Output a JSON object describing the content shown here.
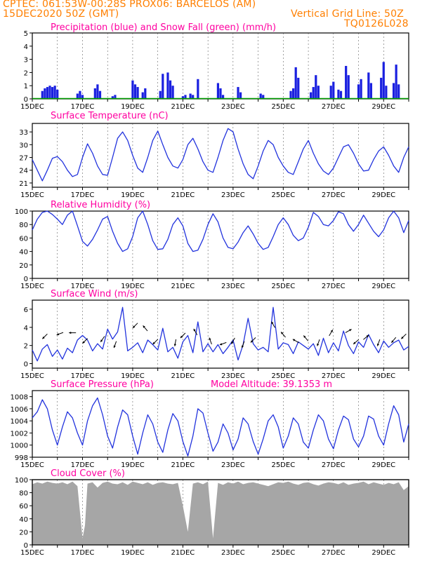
{
  "header": {
    "line1_left": "CPTEC:   061:53W-00:28S   PROX06: BARCELOS (AM)",
    "line2_left": "15DEC2020 50Z (GMT)",
    "line2_right": "Vertical Grid Line: 50Z",
    "line3_right": "TQ0126L028"
  },
  "colors": {
    "header": "#ff7f00",
    "title": "#ff00a0",
    "line": "#2233dd",
    "bar": "#1a20e0",
    "snow": "#00a000",
    "cloud": "#a6a6a6"
  },
  "x_axis_labels": [
    "15DEC",
    "17DEC",
    "19DEC",
    "21DEC",
    "23DEC",
    "25DEC",
    "27DEC",
    "29DEC"
  ],
  "x_axis_start_day": 15,
  "x_axis_end_day": 30,
  "chart_data": [
    {
      "id": "precip",
      "type": "bar",
      "title": "Precipitation (blue) and Snow Fall (green) (mm/h)",
      "ylim": [
        0,
        5
      ],
      "yticks": [
        "0",
        "1",
        "2",
        "3",
        "4",
        "5"
      ],
      "series": [
        {
          "name": "Precipitation",
          "x": [
            15.4,
            15.5,
            15.6,
            15.7,
            15.8,
            15.9,
            16.0,
            16.8,
            16.9,
            17.0,
            17.5,
            17.6,
            17.7,
            18.2,
            18.3,
            19.0,
            19.1,
            19.2,
            19.4,
            19.5,
            20.1,
            20.2,
            20.4,
            20.5,
            20.6,
            21.0,
            21.1,
            21.3,
            21.4,
            21.6,
            22.4,
            22.5,
            22.6,
            23.2,
            23.3,
            24.1,
            24.2,
            25.3,
            25.4,
            25.5,
            25.6,
            26.1,
            26.2,
            26.3,
            26.4,
            26.9,
            27.0,
            27.2,
            27.3,
            27.5,
            27.6,
            28.0,
            28.1,
            28.4,
            28.5,
            28.9,
            29.0,
            29.1,
            29.4,
            29.5,
            29.6
          ],
          "y": [
            0.6,
            0.8,
            0.9,
            1.0,
            0.9,
            1.0,
            0.7,
            0.4,
            0.6,
            0.3,
            0.8,
            1.1,
            0.6,
            0.2,
            0.3,
            1.4,
            1.1,
            0.9,
            0.5,
            0.8,
            0.6,
            1.9,
            2.0,
            1.4,
            1.0,
            0.2,
            0.3,
            0.4,
            0.3,
            1.5,
            1.2,
            0.8,
            0.3,
            0.9,
            0.5,
            0.4,
            0.3,
            0.6,
            0.8,
            2.4,
            1.6,
            0.5,
            0.9,
            1.8,
            1.0,
            1.0,
            1.3,
            0.7,
            0.6,
            2.5,
            1.8,
            1.1,
            1.5,
            2.0,
            1.2,
            1.6,
            2.8,
            1.0,
            1.2,
            2.6,
            1.1
          ]
        },
        {
          "name": "Snow Fall",
          "x": [
            15.0,
            30.0
          ],
          "y": [
            0,
            0
          ]
        }
      ]
    },
    {
      "id": "temp",
      "type": "line",
      "title": "Surface Temperature (nC)",
      "ylim": [
        20,
        35
      ],
      "yticks": [
        "21",
        "24",
        "27",
        "30",
        "33"
      ],
      "ytick_values": [
        21,
        24,
        27,
        30,
        33
      ],
      "x": [
        15.0,
        15.2,
        15.4,
        15.6,
        15.8,
        16.0,
        16.2,
        16.4,
        16.6,
        16.8,
        17.0,
        17.2,
        17.4,
        17.6,
        17.8,
        18.0,
        18.2,
        18.4,
        18.6,
        18.8,
        19.0,
        19.2,
        19.4,
        19.6,
        19.8,
        20.0,
        20.2,
        20.4,
        20.6,
        20.8,
        21.0,
        21.2,
        21.4,
        21.6,
        21.8,
        22.0,
        22.2,
        22.4,
        22.6,
        22.8,
        23.0,
        23.2,
        23.4,
        23.6,
        23.8,
        24.0,
        24.2,
        24.4,
        24.6,
        24.8,
        25.0,
        25.2,
        25.4,
        25.6,
        25.8,
        26.0,
        26.2,
        26.4,
        26.6,
        26.8,
        27.0,
        27.2,
        27.4,
        27.6,
        27.8,
        28.0,
        28.2,
        28.4,
        28.6,
        28.8,
        29.0,
        29.2,
        29.4,
        29.6,
        29.8,
        30.0
      ],
      "y": [
        26.5,
        24,
        21.5,
        24,
        26.8,
        27.2,
        26,
        24,
        22.5,
        23,
        27,
        30.2,
        28,
        25,
        23,
        22.8,
        27,
        31.5,
        33,
        31,
        27.5,
        24.5,
        23.5,
        27,
        31,
        33.2,
        30,
        27,
        25,
        24.5,
        26.5,
        30,
        31.5,
        29,
        26,
        24,
        23.5,
        27,
        31,
        33.8,
        33,
        29,
        25.5,
        23,
        22,
        25,
        28.5,
        31,
        30,
        27,
        25,
        23.5,
        23,
        26,
        29,
        31,
        28,
        25.5,
        23.8,
        23,
        24.5,
        27,
        29.5,
        30,
        28,
        25.5,
        23.8,
        24,
        26.5,
        28.5,
        29.5,
        27.5,
        25,
        23.5,
        27,
        29.5
      ]
    },
    {
      "id": "rh",
      "type": "line",
      "title": "Relative Humidity (%)",
      "ylim": [
        0,
        100
      ],
      "yticks": [
        "0",
        "20",
        "40",
        "60",
        "80",
        "100"
      ],
      "ytick_values": [
        0,
        20,
        40,
        60,
        80,
        100
      ],
      "x": [
        15.0,
        15.2,
        15.4,
        15.6,
        15.8,
        16.0,
        16.2,
        16.4,
        16.6,
        16.8,
        17.0,
        17.2,
        17.4,
        17.6,
        17.8,
        18.0,
        18.2,
        18.4,
        18.6,
        18.8,
        19.0,
        19.2,
        19.4,
        19.6,
        19.8,
        20.0,
        20.2,
        20.4,
        20.6,
        20.8,
        21.0,
        21.2,
        21.4,
        21.6,
        21.8,
        22.0,
        22.2,
        22.4,
        22.6,
        22.8,
        23.0,
        23.2,
        23.4,
        23.6,
        23.8,
        24.0,
        24.2,
        24.4,
        24.6,
        24.8,
        25.0,
        25.2,
        25.4,
        25.6,
        25.8,
        26.0,
        26.2,
        26.4,
        26.6,
        26.8,
        27.0,
        27.2,
        27.4,
        27.6,
        27.8,
        28.0,
        28.2,
        28.4,
        28.6,
        28.8,
        29.0,
        29.2,
        29.4,
        29.6,
        29.8,
        30.0
      ],
      "y": [
        72,
        88,
        98,
        100,
        95,
        88,
        80,
        94,
        100,
        78,
        55,
        48,
        58,
        72,
        88,
        92,
        70,
        52,
        40,
        44,
        62,
        90,
        100,
        80,
        56,
        43,
        44,
        58,
        80,
        90,
        78,
        52,
        40,
        42,
        58,
        80,
        96,
        84,
        60,
        46,
        44,
        54,
        68,
        78,
        66,
        52,
        43,
        46,
        62,
        80,
        90,
        80,
        64,
        56,
        60,
        76,
        98,
        92,
        80,
        78,
        86,
        99,
        96,
        80,
        70,
        80,
        94,
        82,
        70,
        62,
        72,
        90,
        100,
        90,
        68,
        86
      ]
    },
    {
      "id": "wind",
      "type": "line",
      "title": "Surface Wind (m/s)",
      "ylim": [
        -0.5,
        7
      ],
      "yticks": [
        "0",
        "2",
        "4",
        "6"
      ],
      "ytick_values": [
        0,
        2,
        4,
        6
      ],
      "x": [
        15.0,
        15.2,
        15.4,
        15.6,
        15.8,
        16.0,
        16.2,
        16.4,
        16.6,
        16.8,
        17.0,
        17.2,
        17.4,
        17.6,
        17.8,
        18.0,
        18.2,
        18.4,
        18.6,
        18.8,
        19.0,
        19.2,
        19.4,
        19.6,
        19.8,
        20.0,
        20.2,
        20.4,
        20.6,
        20.8,
        21.0,
        21.2,
        21.4,
        21.6,
        21.8,
        22.0,
        22.2,
        22.4,
        22.6,
        22.8,
        23.0,
        23.2,
        23.4,
        23.6,
        23.8,
        24.0,
        24.2,
        24.4,
        24.6,
        24.8,
        25.0,
        25.2,
        25.4,
        25.6,
        25.8,
        26.0,
        26.2,
        26.4,
        26.6,
        26.8,
        27.0,
        27.2,
        27.4,
        27.6,
        27.8,
        28.0,
        28.2,
        28.4,
        28.6,
        28.8,
        29.0,
        29.2,
        29.4,
        29.6,
        29.8,
        30.0
      ],
      "y": [
        1.5,
        0.3,
        1.6,
        2.1,
        0.8,
        1.5,
        0.5,
        1.7,
        1.2,
        2.6,
        3.1,
        2.6,
        1.4,
        2.2,
        1.6,
        3.8,
        2.7,
        3.5,
        6.2,
        1.4,
        1.8,
        2.3,
        1.2,
        2.6,
        2.1,
        1.5,
        3.9,
        1.3,
        1.8,
        0.6,
        2.4,
        3.1,
        1.2,
        4.6,
        1.3,
        2.2,
        1.3,
        2.1,
        1.1,
        1.8,
        2.6,
        0.4,
        2.1,
        5.0,
        2.2,
        1.5,
        1.8,
        1.3,
        6.2,
        1.6,
        2.3,
        2.1,
        1.1,
        2.4,
        2.0,
        1.6,
        2.2,
        0.9,
        2.8,
        1.2,
        2.3,
        1.4,
        3.6,
        2.0,
        1.1,
        2.4,
        1.8,
        3.2,
        2.1,
        1.2,
        2.5,
        1.8,
        2.3,
        2.6,
        1.5,
        1.9
      ],
      "wind_arrows": [
        {
          "x": 15.5,
          "y": 3.0,
          "angle": 225
        },
        {
          "x": 16.1,
          "y": 3.3,
          "angle": 200
        },
        {
          "x": 16.6,
          "y": 3.4,
          "angle": 180
        },
        {
          "x": 17.1,
          "y": 2.5,
          "angle": 225
        },
        {
          "x": 17.8,
          "y": 2.7,
          "angle": 235
        },
        {
          "x": 18.3,
          "y": 2.1,
          "angle": 250
        },
        {
          "x": 19.1,
          "y": 4.2,
          "angle": 225
        },
        {
          "x": 19.5,
          "y": 3.9,
          "angle": 130
        },
        {
          "x": 19.9,
          "y": 2.4,
          "angle": 225
        },
        {
          "x": 20.7,
          "y": 2.3,
          "angle": 260
        },
        {
          "x": 21.0,
          "y": 3.1,
          "angle": 225
        },
        {
          "x": 21.5,
          "y": 3.5,
          "angle": 120
        },
        {
          "x": 22.1,
          "y": 2.5,
          "angle": 110
        },
        {
          "x": 22.6,
          "y": 2.2,
          "angle": 200
        },
        {
          "x": 23.0,
          "y": 2.5,
          "angle": 240
        },
        {
          "x": 23.4,
          "y": 2.1,
          "angle": 250
        },
        {
          "x": 23.8,
          "y": 2.6,
          "angle": 225
        },
        {
          "x": 24.6,
          "y": 4.3,
          "angle": 120
        },
        {
          "x": 25.0,
          "y": 3.2,
          "angle": 130
        },
        {
          "x": 25.5,
          "y": 2.5,
          "angle": 150
        },
        {
          "x": 25.9,
          "y": 2.8,
          "angle": 130
        },
        {
          "x": 26.4,
          "y": 2.3,
          "angle": 250
        },
        {
          "x": 26.9,
          "y": 3.4,
          "angle": 60
        },
        {
          "x": 27.6,
          "y": 3.6,
          "angle": 30
        },
        {
          "x": 27.9,
          "y": 2.4,
          "angle": 220
        },
        {
          "x": 28.3,
          "y": 2.9,
          "angle": 40
        },
        {
          "x": 28.8,
          "y": 2.3,
          "angle": 250
        },
        {
          "x": 29.4,
          "y": 2.6,
          "angle": 230
        },
        {
          "x": 29.8,
          "y": 3.0,
          "angle": 225
        }
      ]
    },
    {
      "id": "pres",
      "type": "line",
      "title": "Surface Pressure (hPa)",
      "subtitle": "Model Altitude: 39.1353 m",
      "ylim": [
        998,
        1009
      ],
      "yticks": [
        "998",
        "1000",
        "1002",
        "1004",
        "1006",
        "1008"
      ],
      "ytick_values": [
        998,
        1000,
        1002,
        1004,
        1006,
        1008
      ],
      "x": [
        15.0,
        15.2,
        15.4,
        15.6,
        15.8,
        16.0,
        16.2,
        16.4,
        16.6,
        16.8,
        17.0,
        17.2,
        17.4,
        17.6,
        17.8,
        18.0,
        18.2,
        18.4,
        18.6,
        18.8,
        19.0,
        19.2,
        19.4,
        19.6,
        19.8,
        20.0,
        20.2,
        20.4,
        20.6,
        20.8,
        21.0,
        21.2,
        21.4,
        21.6,
        21.8,
        22.0,
        22.2,
        22.4,
        22.6,
        22.8,
        23.0,
        23.2,
        23.4,
        23.6,
        23.8,
        24.0,
        24.2,
        24.4,
        24.6,
        24.8,
        25.0,
        25.2,
        25.4,
        25.6,
        25.8,
        26.0,
        26.2,
        26.4,
        26.6,
        26.8,
        27.0,
        27.2,
        27.4,
        27.6,
        27.8,
        28.0,
        28.2,
        28.4,
        28.6,
        28.8,
        29.0,
        29.2,
        29.4,
        29.6,
        29.8,
        30.0
      ],
      "y": [
        1004.5,
        1005.5,
        1007.5,
        1006,
        1002.5,
        1000,
        1003,
        1005.5,
        1004.5,
        1002,
        1000,
        1004,
        1006.5,
        1007.8,
        1005,
        1001.5,
        999.5,
        1003,
        1005.8,
        1005,
        1001.5,
        998.5,
        1002,
        1005,
        1003.5,
        1000.5,
        998.8,
        1002.5,
        1005.2,
        1004,
        1000.6,
        998.2,
        1001.5,
        1006,
        1005.3,
        1002,
        999,
        1000.5,
        1003.5,
        1002,
        999.2,
        1001,
        1004.5,
        1003.5,
        1000.6,
        998.5,
        1001,
        1004,
        1005,
        1003,
        999.5,
        1001.5,
        1004.5,
        1003.5,
        1000.5,
        999.5,
        1002.5,
        1005,
        1004,
        1001,
        999.4,
        1002.5,
        1004.8,
        1004.2,
        1001,
        999.7,
        1001.5,
        1004.8,
        1004.3,
        1001.5,
        1000,
        1003.5,
        1006.5,
        1005,
        1000.5,
        1003.5
      ]
    },
    {
      "id": "cloud",
      "type": "area",
      "title": "Cloud Cover (%)",
      "ylim": [
        0,
        100
      ],
      "yticks": [
        "0",
        "20",
        "40",
        "60",
        "80",
        "100"
      ],
      "ytick_values": [
        0,
        20,
        40,
        60,
        80,
        100
      ],
      "x": [
        15.0,
        15.2,
        15.4,
        15.6,
        15.8,
        16.0,
        16.2,
        16.4,
        16.6,
        16.8,
        17.0,
        17.1,
        17.2,
        17.4,
        17.6,
        17.8,
        18.0,
        18.2,
        18.4,
        18.6,
        18.8,
        19.0,
        19.2,
        19.4,
        19.6,
        19.8,
        20.0,
        20.2,
        20.4,
        20.6,
        20.8,
        21.0,
        21.2,
        21.4,
        21.6,
        21.8,
        22.0,
        22.2,
        22.4,
        22.6,
        22.8,
        23.0,
        23.2,
        23.4,
        23.6,
        23.8,
        24.0,
        24.2,
        24.4,
        24.6,
        24.8,
        25.0,
        25.2,
        25.4,
        25.6,
        25.8,
        26.0,
        26.2,
        26.4,
        26.6,
        26.8,
        27.0,
        27.2,
        27.4,
        27.6,
        27.8,
        28.0,
        28.2,
        28.4,
        28.6,
        28.8,
        29.0,
        29.2,
        29.4,
        29.6,
        29.8,
        30.0
      ],
      "y": [
        93,
        96,
        94,
        97,
        95,
        94,
        96,
        93,
        97,
        90,
        10,
        30,
        94,
        96,
        88,
        95,
        97,
        94,
        93,
        96,
        92,
        97,
        95,
        93,
        96,
        92,
        95,
        96,
        94,
        93,
        95,
        60,
        20,
        94,
        96,
        93,
        97,
        10,
        95,
        92,
        96,
        94,
        97,
        93,
        95,
        96,
        94,
        92,
        90,
        93,
        96,
        95,
        97,
        94,
        92,
        95,
        96,
        93,
        91,
        94,
        96,
        95,
        93,
        96,
        92,
        94,
        95,
        97,
        93,
        96,
        94,
        92,
        95,
        93,
        96,
        84,
        90
      ]
    }
  ]
}
